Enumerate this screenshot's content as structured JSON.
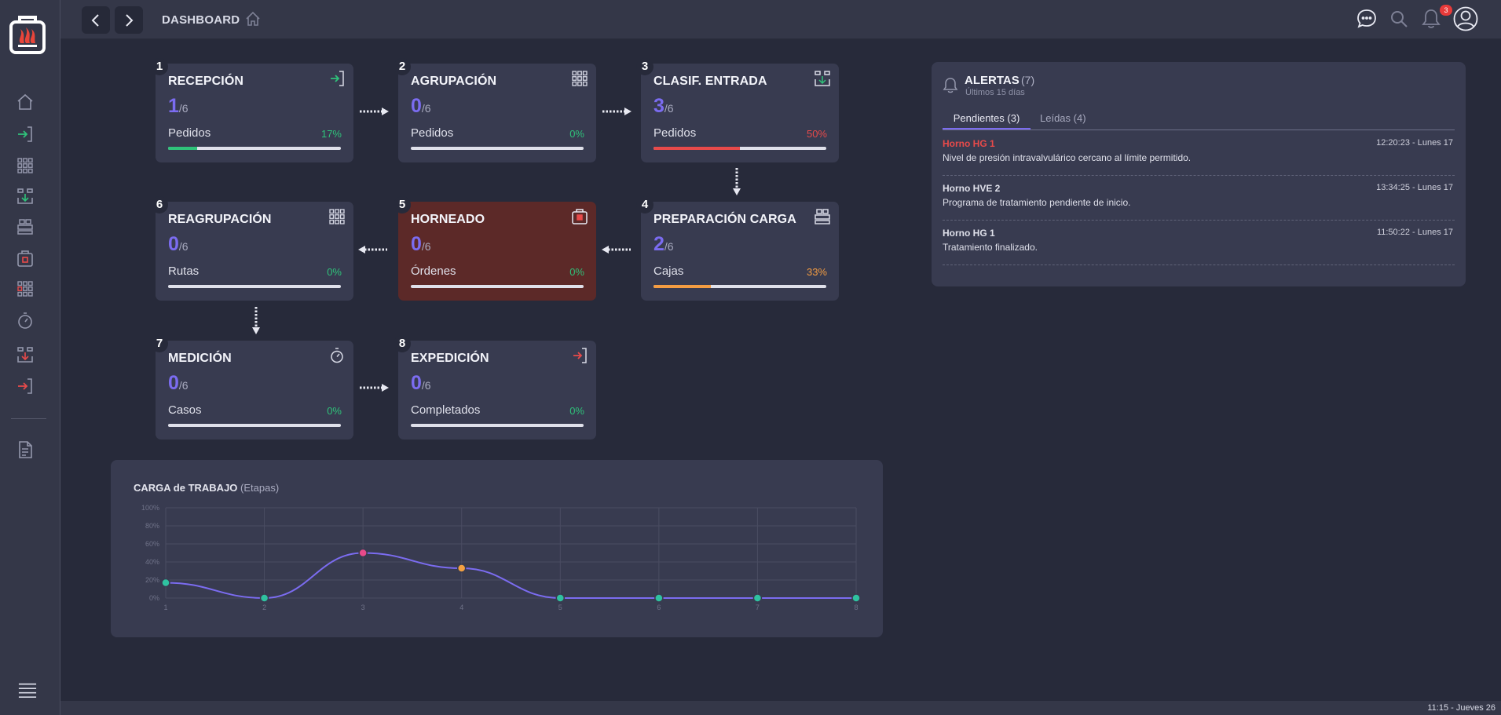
{
  "header": {
    "breadcrumb": "DASHBOARD",
    "notifications_count": "3"
  },
  "stages": [
    {
      "num": "1",
      "title": "RECEPCIÓN",
      "count": "1",
      "total": "/6",
      "label": "Pedidos",
      "percent": "17%",
      "progress": 0.17,
      "color": "#2fc27a",
      "icon": "enter-icon",
      "alert": false
    },
    {
      "num": "2",
      "title": "AGRUPACIÓN",
      "count": "0",
      "total": "/6",
      "label": "Pedidos",
      "percent": "0%",
      "progress": 0,
      "color": "#2fc27a",
      "icon": "grid-icon",
      "alert": false
    },
    {
      "num": "3",
      "title": "CLASIF. ENTRADA",
      "count": "3",
      "total": "/6",
      "label": "Pedidos",
      "percent": "50%",
      "progress": 0.5,
      "color": "#e84a4a",
      "icon": "tray-in-icon",
      "alert": false
    },
    {
      "num": "4",
      "title": "PREPARACIÓN CARGA",
      "count": "2",
      "total": "/6",
      "label": "Cajas",
      "percent": "33%",
      "progress": 0.33,
      "color": "#f39c42",
      "icon": "stack-icon",
      "alert": false
    },
    {
      "num": "5",
      "title": "HORNEADO",
      "count": "0",
      "total": "/6",
      "label": "Órdenes",
      "percent": "0%",
      "progress": 0,
      "color": "#2fc27a",
      "icon": "oven-icon",
      "alert": true
    },
    {
      "num": "6",
      "title": "REAGRUPACIÓN",
      "count": "0",
      "total": "/6",
      "label": "Rutas",
      "percent": "0%",
      "progress": 0,
      "color": "#2fc27a",
      "icon": "grid-icon",
      "alert": false
    },
    {
      "num": "7",
      "title": "MEDICIÓN",
      "count": "0",
      "total": "/6",
      "label": "Casos",
      "percent": "0%",
      "progress": 0,
      "color": "#2fc27a",
      "icon": "stopwatch-icon",
      "alert": false
    },
    {
      "num": "8",
      "title": "EXPEDICIÓN",
      "count": "0",
      "total": "/6",
      "label": "Completados",
      "percent": "0%",
      "progress": 0,
      "color": "#2fc27a",
      "icon": "exit-icon",
      "alert": false
    }
  ],
  "chart_panel": {
    "title": "CARGA de TRABAJO",
    "subtitle": "(Etapas)"
  },
  "chart_data": {
    "type": "line",
    "x": [
      "1",
      "2",
      "3",
      "4",
      "5",
      "6",
      "7",
      "8"
    ],
    "series": [
      {
        "values": [
          17,
          0,
          50,
          33,
          0,
          0,
          0,
          0
        ]
      }
    ],
    "point_colors": [
      "#2fc2a0",
      "#2fc2a0",
      "#e84a8a",
      "#f3a042",
      "#2fc2a0",
      "#2fc2a0",
      "#2fc2a0",
      "#2fc2a0"
    ],
    "line_color": "#7b6cf0",
    "y_ticks": [
      "100%",
      "80%",
      "60%",
      "40%",
      "20%",
      "0%"
    ],
    "ylim": [
      0,
      100
    ],
    "grid": true
  },
  "alerts": {
    "title": "ALERTAS",
    "count": "(7)",
    "subtitle": "Últimos 15 días",
    "tabs": [
      {
        "label": "Pendientes (3)",
        "active": true
      },
      {
        "label": "Leídas (4)",
        "active": false
      }
    ],
    "items": [
      {
        "name": "Horno HG 1",
        "time": "12:20:23 - Lunes 17",
        "message": "Nivel de presión intravalvulárico cercano al límite permitido.",
        "highlight": true
      },
      {
        "name": "Horno HVE 2",
        "time": "13:34:25 - Lunes 17",
        "message": "Programa de tratamiento pendiente de inicio.",
        "highlight": false
      },
      {
        "name": "Horno HG 1",
        "time": "11:50:22 - Lunes 17",
        "message": "Tratamiento finalizado.",
        "highlight": false
      }
    ]
  },
  "status": {
    "clock": "11:15 - Jueves 26"
  },
  "sidebar": {
    "items": [
      {
        "icon": "home-icon",
        "color": "#9497ac"
      },
      {
        "icon": "enter-icon",
        "color": "#2fc27a"
      },
      {
        "icon": "grid-icon",
        "color": "#9497ac"
      },
      {
        "icon": "tray-in-icon",
        "color": "#2fc27a"
      },
      {
        "icon": "stack-icon",
        "color": "#9497ac"
      },
      {
        "icon": "oven-icon",
        "color": "#e84a4a"
      },
      {
        "icon": "grid-icon",
        "color": "#9497ac"
      },
      {
        "icon": "stopwatch-icon",
        "color": "#9497ac"
      },
      {
        "icon": "tray-out-icon",
        "color": "#e84a4a"
      },
      {
        "icon": "exit-icon",
        "color": "#e84a4a"
      },
      {
        "icon": "document-icon",
        "color": "#9497ac"
      }
    ]
  }
}
